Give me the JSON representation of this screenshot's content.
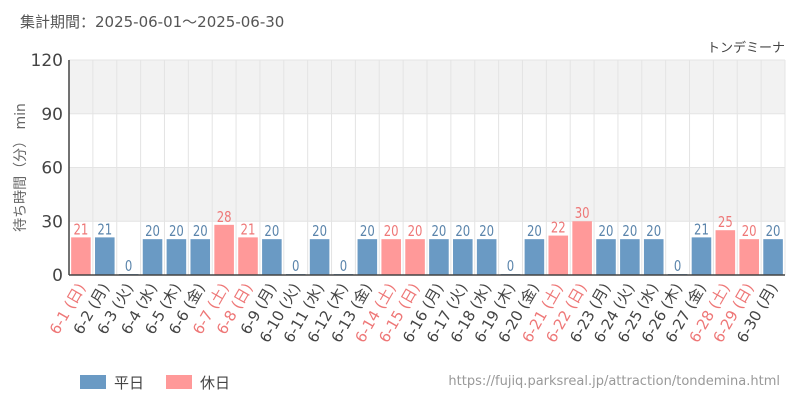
{
  "header": {
    "period": "集計期間：2025-06-01～2025-06-30"
  },
  "footer": {
    "url": "https://fujiq.parksreal.jp/attraction/tondemina.html"
  },
  "colors": {
    "weekday": "#6a9ac4",
    "holiday": "#ff9999",
    "weekday_label": "#5a84ab",
    "holiday_label": "#ee7777",
    "band": "#f2f2f2",
    "grid": "#e4e4e4",
    "axis": "#444444"
  },
  "chart_data": {
    "type": "bar",
    "title": "トンデミーナ",
    "ylabel": "待ち時間（分） min",
    "xlabel": "",
    "ylim": [
      0,
      120
    ],
    "yticks": [
      0,
      30,
      60,
      90,
      120
    ],
    "grid": true,
    "legend_position": "bottom-left",
    "categories": [
      "6-1 (日)",
      "6-2 (月)",
      "6-3 (火)",
      "6-4 (水)",
      "6-5 (木)",
      "6-6 (金)",
      "6-7 (土)",
      "6-8 (日)",
      "6-9 (月)",
      "6-10 (火)",
      "6-11 (水)",
      "6-12 (木)",
      "6-13 (金)",
      "6-14 (土)",
      "6-15 (日)",
      "6-16 (月)",
      "6-17 (火)",
      "6-18 (水)",
      "6-19 (木)",
      "6-20 (金)",
      "6-21 (土)",
      "6-22 (日)",
      "6-23 (月)",
      "6-24 (火)",
      "6-25 (水)",
      "6-26 (木)",
      "6-27 (金)",
      "6-28 (土)",
      "6-29 (日)",
      "6-30 (月)"
    ],
    "values": [
      21,
      21,
      0,
      20,
      20,
      20,
      28,
      21,
      20,
      0,
      20,
      0,
      20,
      20,
      20,
      20,
      20,
      20,
      0,
      20,
      22,
      30,
      20,
      20,
      20,
      0,
      21,
      25,
      20,
      20
    ],
    "day_type": [
      "holiday",
      "weekday",
      "weekday",
      "weekday",
      "weekday",
      "weekday",
      "holiday",
      "holiday",
      "weekday",
      "weekday",
      "weekday",
      "weekday",
      "weekday",
      "holiday",
      "holiday",
      "weekday",
      "weekday",
      "weekday",
      "weekday",
      "weekday",
      "holiday",
      "holiday",
      "weekday",
      "weekday",
      "weekday",
      "weekday",
      "weekday",
      "holiday",
      "holiday",
      "weekday"
    ],
    "legend": [
      {
        "key": "weekday",
        "label": "平日"
      },
      {
        "key": "holiday",
        "label": "休日"
      }
    ]
  }
}
